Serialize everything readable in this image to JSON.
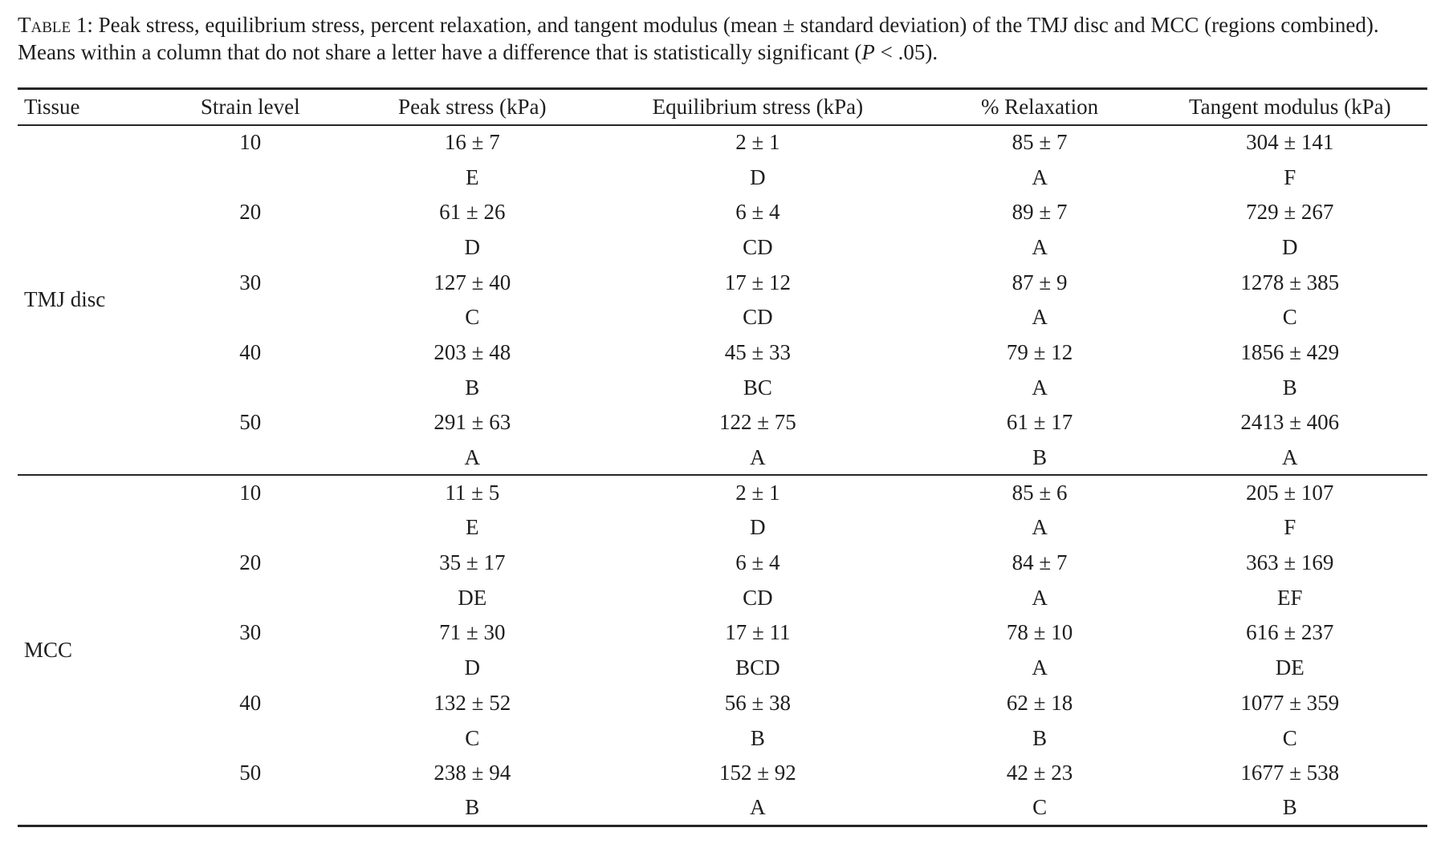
{
  "caption": {
    "label": "Table 1:",
    "body1": " Peak stress, equilibrium stress, percent relaxation, and tangent modulus (mean ± standard deviation) of the TMJ disc and MCC (regions combined). Means within a column that do not share a letter have a difference that is statistically significant (",
    "p_symbol": "P",
    "body2": " < .05)."
  },
  "table": {
    "columns": [
      "Tissue",
      "Strain level",
      "Peak stress (kPa)",
      "Equilibrium stress (kPa)",
      "% Relaxation",
      "Tangent modulus (kPa)"
    ],
    "sections": [
      {
        "tissue": "TMJ disc",
        "rows": [
          {
            "strain": "10",
            "peak": "16 ± 7",
            "peak_letter": "E",
            "equil": "2 ± 1",
            "equil_letter": "D",
            "relax": "85 ± 7",
            "relax_letter": "A",
            "tangent": "304 ± 141",
            "tangent_letter": "F"
          },
          {
            "strain": "20",
            "peak": "61 ± 26",
            "peak_letter": "D",
            "equil": "6 ± 4",
            "equil_letter": "CD",
            "relax": "89 ± 7",
            "relax_letter": "A",
            "tangent": "729 ± 267",
            "tangent_letter": "D"
          },
          {
            "strain": "30",
            "peak": "127 ± 40",
            "peak_letter": "C",
            "equil": "17 ± 12",
            "equil_letter": "CD",
            "relax": "87 ± 9",
            "relax_letter": "A",
            "tangent": "1278 ± 385",
            "tangent_letter": "C"
          },
          {
            "strain": "40",
            "peak": "203 ± 48",
            "peak_letter": "B",
            "equil": "45 ± 33",
            "equil_letter": "BC",
            "relax": "79 ± 12",
            "relax_letter": "A",
            "tangent": "1856 ± 429",
            "tangent_letter": "B"
          },
          {
            "strain": "50",
            "peak": "291 ± 63",
            "peak_letter": "A",
            "equil": "122 ± 75",
            "equil_letter": "A",
            "relax": "61 ± 17",
            "relax_letter": "B",
            "tangent": "2413 ± 406",
            "tangent_letter": "A"
          }
        ]
      },
      {
        "tissue": "MCC",
        "rows": [
          {
            "strain": "10",
            "peak": "11 ± 5",
            "peak_letter": "E",
            "equil": "2 ± 1",
            "equil_letter": "D",
            "relax": "85 ± 6",
            "relax_letter": "A",
            "tangent": "205 ± 107",
            "tangent_letter": "F"
          },
          {
            "strain": "20",
            "peak": "35 ± 17",
            "peak_letter": "DE",
            "equil": "6 ± 4",
            "equil_letter": "CD",
            "relax": "84 ± 7",
            "relax_letter": "A",
            "tangent": "363 ± 169",
            "tangent_letter": "EF"
          },
          {
            "strain": "30",
            "peak": "71 ± 30",
            "peak_letter": "D",
            "equil": "17 ± 11",
            "equil_letter": "BCD",
            "relax": "78 ± 10",
            "relax_letter": "A",
            "tangent": "616 ± 237",
            "tangent_letter": "DE"
          },
          {
            "strain": "40",
            "peak": "132 ± 52",
            "peak_letter": "C",
            "equil": "56 ± 38",
            "equil_letter": "B",
            "relax": "62 ± 18",
            "relax_letter": "B",
            "tangent": "1077 ± 359",
            "tangent_letter": "C"
          },
          {
            "strain": "50",
            "peak": "238 ± 94",
            "peak_letter": "B",
            "equil": "152 ± 92",
            "equil_letter": "A",
            "relax": "42 ± 23",
            "relax_letter": "C",
            "tangent": "1677 ± 538",
            "tangent_letter": "B"
          }
        ]
      }
    ]
  }
}
